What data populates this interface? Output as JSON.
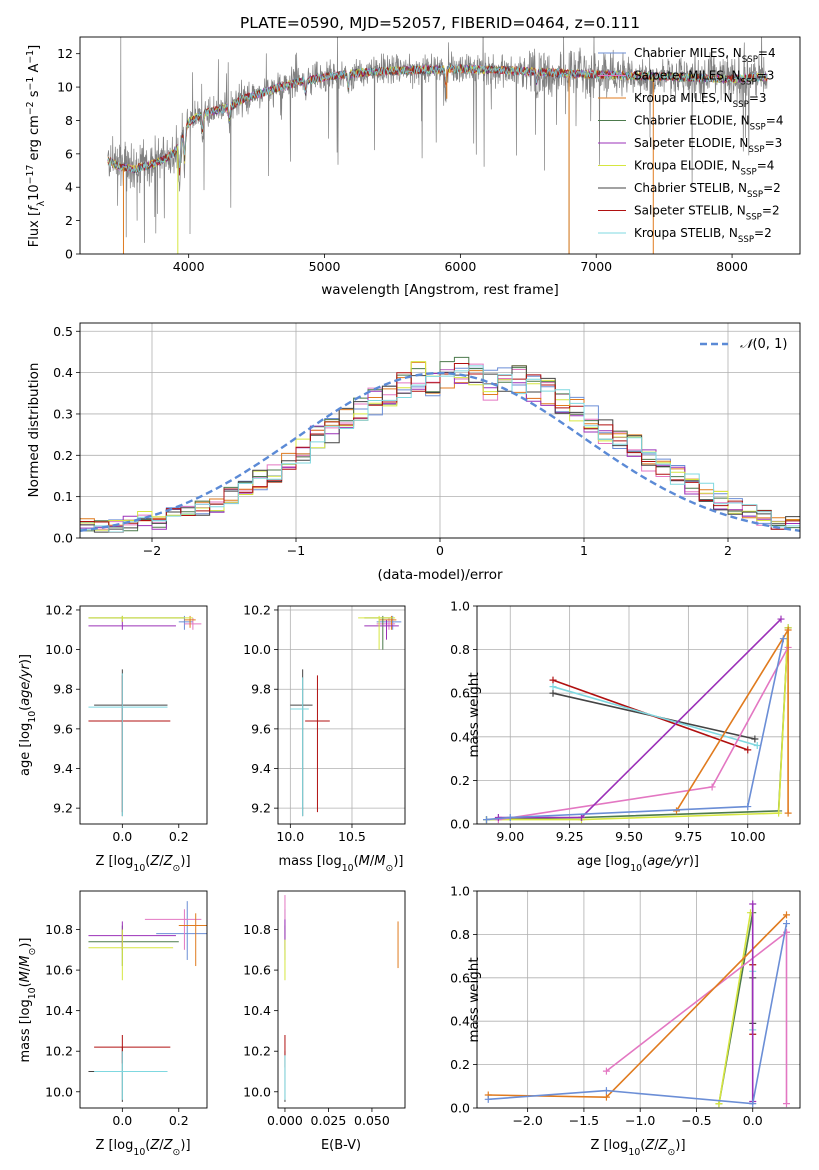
{
  "chart_data": [
    {
      "type": "line",
      "title": "PLATE=0590, MJD=52057, FIBERID=0464, z=0.111",
      "xlabel": "wavelength [Angstrom, rest frame]",
      "ylabel": "Flux [f_λ 10^-17 erg cm^-2 s^-1 A^-1]",
      "xlim": [
        3200,
        8500
      ],
      "ylim": [
        0,
        13
      ],
      "xticks": [
        4000,
        5000,
        6000,
        7000,
        8000
      ],
      "yticks": [
        0,
        2,
        4,
        6,
        8,
        10,
        12
      ],
      "grid": false,
      "legend_position": "right",
      "series": [
        {
          "name": "Chabrier MILES, N_SSP=4",
          "color": "#6b8ed6"
        },
        {
          "name": "Salpeter MILES, N_SSP=3",
          "color": "#e377c2"
        },
        {
          "name": "Kroupa MILES, N_SSP=3",
          "color": "#e07b1f"
        },
        {
          "name": "Chabrier ELODIE, N_SSP=4",
          "color": "#4c7a4c"
        },
        {
          "name": "Salpeter ELODIE, N_SSP=3",
          "color": "#9b30b8"
        },
        {
          "name": "Kroupa ELODIE, N_SSP=4",
          "color": "#d6e640"
        },
        {
          "name": "Chabrier STELIB, N_SSP=2",
          "color": "#444444"
        },
        {
          "name": "Salpeter STELIB, N_SSP=2",
          "color": "#b01010"
        },
        {
          "name": "Kroupa STELIB, N_SSP=2",
          "color": "#7fd8e0"
        }
      ],
      "data_color": "#808080",
      "continuum": {
        "x": [
          3400,
          3500,
          3600,
          3700,
          3800,
          3900,
          4000,
          4100,
          4200,
          4300,
          4400,
          4600,
          4800,
          5000,
          5300,
          5600,
          6000,
          6400,
          6800,
          7200,
          7600,
          8000,
          8250
        ],
        "y": [
          5.6,
          5.2,
          5.1,
          5.3,
          5.6,
          6.1,
          7.9,
          8.4,
          8.6,
          8.8,
          9.3,
          9.8,
          10.3,
          10.6,
          10.9,
          11.0,
          11.1,
          11.0,
          10.8,
          10.7,
          10.6,
          10.5,
          10.6
        ]
      }
    },
    {
      "type": "histogram",
      "xlabel": "(data-model)/error",
      "ylabel": "Normed distribution",
      "xlim": [
        -2.5,
        2.5
      ],
      "ylim": [
        0,
        0.52
      ],
      "xticks": [
        -2,
        -1,
        0,
        1,
        2
      ],
      "yticks": [
        0.0,
        0.1,
        0.2,
        0.3,
        0.4,
        0.5
      ],
      "grid": true,
      "legend_position": "upper right",
      "legend": "N(0, 1)",
      "bin_edges_start": -2.5,
      "bin_width": 0.1,
      "base_values": [
        0.03,
        0.025,
        0.03,
        0.035,
        0.045,
        0.04,
        0.055,
        0.065,
        0.075,
        0.08,
        0.1,
        0.12,
        0.14,
        0.16,
        0.18,
        0.21,
        0.24,
        0.26,
        0.29,
        0.31,
        0.33,
        0.35,
        0.37,
        0.39,
        0.37,
        0.39,
        0.41,
        0.4,
        0.37,
        0.39,
        0.38,
        0.36,
        0.35,
        0.33,
        0.31,
        0.29,
        0.26,
        0.24,
        0.22,
        0.19,
        0.17,
        0.15,
        0.13,
        0.11,
        0.09,
        0.075,
        0.06,
        0.05,
        0.04,
        0.035
      ]
    },
    {
      "type": "scatter",
      "xlabel": "Z [log10(Z/Z⊙)]",
      "ylabel": "age [log10(age/yr)]",
      "xlim": [
        -0.15,
        0.3
      ],
      "ylim": [
        9.12,
        10.22
      ],
      "xticks": [
        0.0,
        0.2
      ],
      "yticks": [
        9.2,
        9.4,
        9.6,
        9.8,
        10.0,
        10.2
      ],
      "grid": false
    },
    {
      "type": "scatter",
      "xlabel": "mass [log10(M/M⊙)]",
      "ylabel": "",
      "xlim": [
        9.9,
        10.93
      ],
      "ylim": [
        9.12,
        10.22
      ],
      "xticks": [
        10.0,
        10.5
      ],
      "yticks": [
        9.2,
        9.4,
        9.6,
        9.8,
        10.0,
        10.2
      ],
      "grid": true
    },
    {
      "type": "line",
      "xlabel": "age [log10(age/yr)]",
      "ylabel": "mass weight",
      "xlim": [
        8.86,
        10.22
      ],
      "ylim": [
        0,
        1
      ],
      "xticks": [
        9.0,
        9.25,
        9.5,
        9.75,
        10.0
      ],
      "yticks": [
        0.0,
        0.2,
        0.4,
        0.6,
        0.8,
        1.0
      ],
      "grid": true,
      "series": [
        {
          "name": "Chabrier MILES",
          "x": [
            8.9,
            9.0,
            10.0,
            10.15
          ],
          "y": [
            0.02,
            0.03,
            0.08,
            0.85
          ]
        },
        {
          "name": "Salpeter MILES",
          "x": [
            8.95,
            9.85,
            10.17
          ],
          "y": [
            0.02,
            0.17,
            0.81
          ]
        },
        {
          "name": "Kroupa MILES",
          "x": [
            9.7,
            10.17,
            10.17
          ],
          "y": [
            0.06,
            0.89,
            0.05
          ]
        },
        {
          "name": "Chabrier ELODIE",
          "x": [
            8.9,
            9.3,
            10.13,
            10.17
          ],
          "y": [
            0.02,
            0.03,
            0.06,
            0.9
          ]
        },
        {
          "name": "Salpeter ELODIE",
          "x": [
            8.95,
            9.3,
            10.14
          ],
          "y": [
            0.03,
            0.03,
            0.94
          ]
        },
        {
          "name": "Kroupa ELODIE",
          "x": [
            8.9,
            9.3,
            10.13,
            10.17
          ],
          "y": [
            0.02,
            0.02,
            0.05,
            0.9
          ]
        },
        {
          "name": "Chabrier STELIB",
          "x": [
            9.18,
            10.03
          ],
          "y": [
            0.6,
            0.39
          ]
        },
        {
          "name": "Salpeter STELIB",
          "x": [
            9.18,
            10.0
          ],
          "y": [
            0.66,
            0.34
          ]
        },
        {
          "name": "Kroupa STELIB",
          "x": [
            9.18,
            10.04
          ],
          "y": [
            0.63,
            0.36
          ]
        }
      ]
    },
    {
      "type": "scatter",
      "xlabel": "Z [log10(Z/Z⊙)]",
      "ylabel": "mass [log10(M/M⊙)]",
      "xlim": [
        -0.15,
        0.3
      ],
      "ylim": [
        9.92,
        10.99
      ],
      "xticks": [
        0.0,
        0.2
      ],
      "yticks": [
        10.0,
        10.2,
        10.4,
        10.6,
        10.8
      ],
      "grid": false
    },
    {
      "type": "scatter",
      "xlabel": "E(B-V)",
      "ylabel": "",
      "xlim": [
        -0.004,
        0.069
      ],
      "ylim": [
        9.92,
        10.99
      ],
      "xticks": [
        0.0,
        0.025,
        0.05
      ],
      "yticks": [
        10.0,
        10.2,
        10.4,
        10.6,
        10.8
      ],
      "grid": false
    },
    {
      "type": "line",
      "xlabel": "Z [log10(Z/Z⊙)]",
      "ylabel": "mass weight",
      "xlim": [
        -2.45,
        0.42
      ],
      "ylim": [
        0,
        1
      ],
      "xticks": [
        -2.0,
        -1.5,
        -1.0,
        -0.5,
        0.0
      ],
      "yticks": [
        0.0,
        0.2,
        0.4,
        0.6,
        0.8,
        1.0
      ],
      "grid": true,
      "series": [
        {
          "name": "Chabrier MILES",
          "x": [
            -2.35,
            -1.3,
            0.0,
            0.3
          ],
          "y": [
            0.04,
            0.08,
            0.02,
            0.85
          ]
        },
        {
          "name": "Salpeter MILES",
          "x": [
            -1.3,
            0.3,
            0.3
          ],
          "y": [
            0.17,
            0.81,
            0.02
          ]
        },
        {
          "name": "Kroupa MILES",
          "x": [
            -2.35,
            -1.3,
            0.3
          ],
          "y": [
            0.06,
            0.05,
            0.89
          ]
        },
        {
          "name": "Chabrier ELODIE",
          "x": [
            -0.3,
            0.0
          ],
          "y": [
            0.02,
            0.9
          ]
        },
        {
          "name": "Salpeter ELODIE",
          "x": [
            0.0,
            0.0
          ],
          "y": [
            0.03,
            0.94
          ]
        },
        {
          "name": "Kroupa ELODIE",
          "x": [
            -0.3,
            -0.02
          ],
          "y": [
            0.02,
            0.9
          ]
        },
        {
          "name": "Chabrier STELIB",
          "x": [
            0.0,
            0.0
          ],
          "y": [
            0.6,
            0.39
          ]
        },
        {
          "name": "Salpeter STELIB",
          "x": [
            0.0,
            0.0
          ],
          "y": [
            0.66,
            0.34
          ]
        },
        {
          "name": "Kroupa STELIB",
          "x": [
            0.0,
            0.0
          ],
          "y": [
            0.63,
            0.36
          ]
        }
      ]
    }
  ]
}
